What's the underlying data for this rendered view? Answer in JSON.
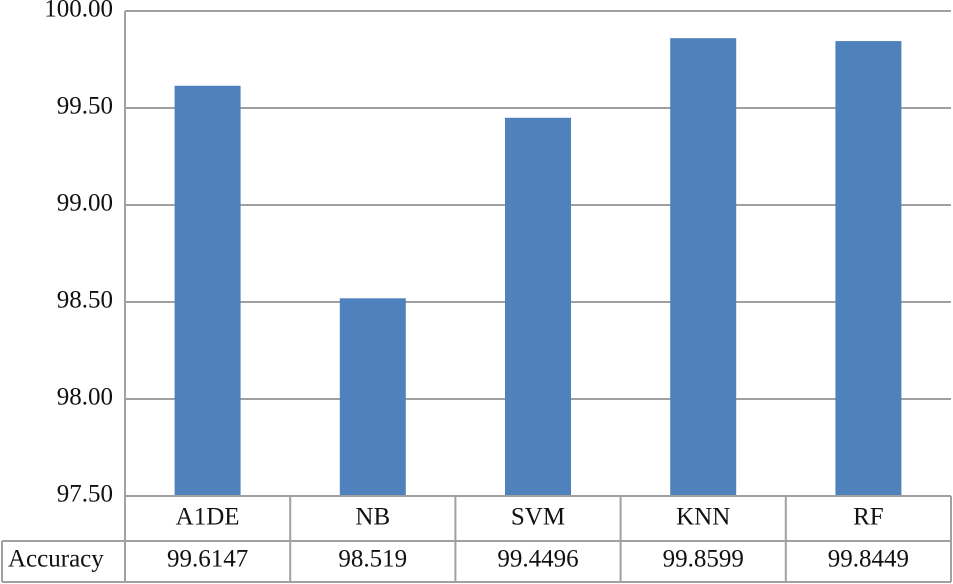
{
  "chart_data": {
    "type": "bar",
    "categories": [
      "A1DE",
      "NB",
      "SVM",
      "KNN",
      "RF"
    ],
    "series": [
      {
        "name": "Accuracy",
        "color": "#4f81bd",
        "values": [
          99.6147,
          98.519,
          99.4496,
          99.8599,
          99.8449
        ]
      }
    ],
    "ylim": [
      97.5,
      100
    ],
    "yticks": [
      {
        "value": 97.5,
        "label": "97.50"
      },
      {
        "value": 98,
        "label": "98.00"
      },
      {
        "value": 98.5,
        "label": "98.50"
      },
      {
        "value": 99,
        "label": "99.00"
      },
      {
        "value": 99.5,
        "label": "99.50"
      },
      {
        "value": 100,
        "label": "100.00"
      }
    ],
    "grid": true,
    "data_table": true
  }
}
